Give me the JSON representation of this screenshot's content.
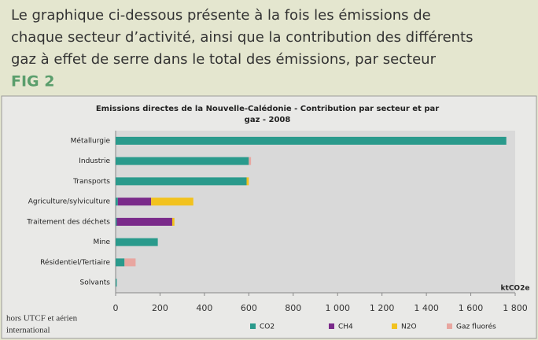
{
  "intro": [
    "Le graphique ci-dessous présente à la fois les émissions de",
    "chaque secteur d’activité, ainsi que la contribution des différents",
    "gaz à effet de serre dans le total des émissions, par secteur"
  ],
  "fig_label": "FIG 2",
  "footnote": [
    "hors UTCF et aérien",
    "international"
  ],
  "chart_data": {
    "type": "stacked-barh",
    "title": [
      "Emissions directes de la Nouvelle-Calédonie - Contribution par secteur et par",
      "gaz - 2008"
    ],
    "x_unit": "ktCO2e",
    "categories": [
      "Métallurgie",
      "Industrie",
      "Transports",
      "Agriculture/sylviculture",
      "Traitement des déchets",
      "Mine",
      "Résidentiel/Tertiaire",
      "Solvants"
    ],
    "series": [
      {
        "name": "CO2",
        "color": "#2a9a8c",
        "values": [
          1760,
          600,
          590,
          10,
          5,
          190,
          40,
          5
        ]
      },
      {
        "name": "CH4",
        "color": "#7a2a8a",
        "values": [
          0,
          0,
          0,
          150,
          250,
          0,
          0,
          0
        ]
      },
      {
        "name": "N2O",
        "color": "#f2c21e",
        "values": [
          0,
          0,
          10,
          190,
          10,
          0,
          0,
          0
        ]
      },
      {
        "name": "Gaz fluorés",
        "color": "#e8a6a0",
        "values": [
          0,
          10,
          0,
          0,
          0,
          0,
          50,
          0
        ]
      }
    ],
    "xlim": [
      0,
      1800
    ],
    "xticks": [
      0,
      200,
      400,
      600,
      800,
      {
        "value": 1000,
        "label": "1 000"
      },
      {
        "value": 1200,
        "label": "1 200"
      },
      {
        "value": 1400,
        "label": "1 400"
      },
      {
        "value": 1600,
        "label": "1 600"
      },
      {
        "value": 1800,
        "label": "1 800"
      }
    ]
  }
}
